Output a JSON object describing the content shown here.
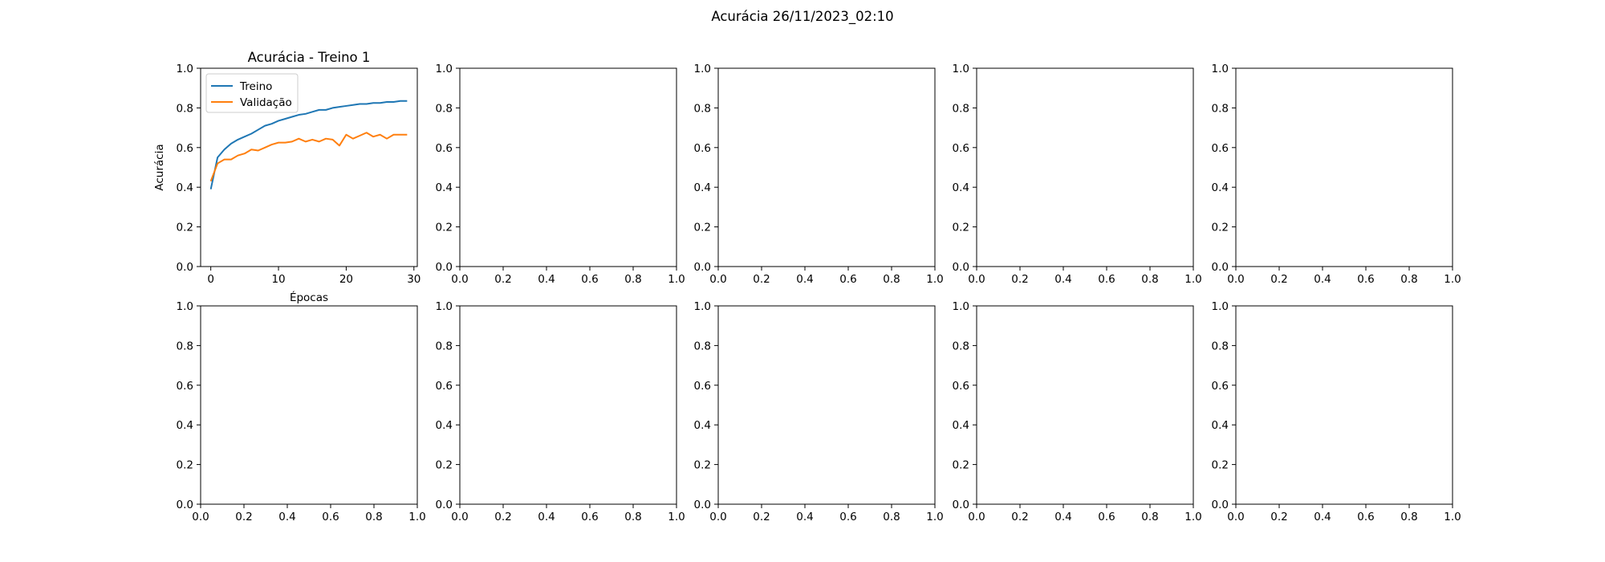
{
  "figure": {
    "suptitle": "Acurácia 26/11/2023_02:10"
  },
  "chart_data": [
    {
      "type": "line",
      "title": "Acurácia - Treino 1",
      "xlabel": "Épocas",
      "ylabel": "Acurácia",
      "xlim": [
        -1.5,
        30.5
      ],
      "ylim": [
        0.0,
        1.0
      ],
      "xticks": [
        0,
        10,
        20,
        30
      ],
      "yticks": [
        0.0,
        0.2,
        0.4,
        0.6,
        0.8,
        1.0
      ],
      "legend_position": "upper-left",
      "x": [
        0,
        1,
        2,
        3,
        4,
        5,
        6,
        7,
        8,
        9,
        10,
        11,
        12,
        13,
        14,
        15,
        16,
        17,
        18,
        19,
        20,
        21,
        22,
        23,
        24,
        25,
        26,
        27,
        28,
        29
      ],
      "series": [
        {
          "name": "Treino",
          "color": "#1f77b4",
          "values": [
            0.39,
            0.55,
            0.59,
            0.62,
            0.64,
            0.655,
            0.67,
            0.69,
            0.71,
            0.72,
            0.735,
            0.745,
            0.755,
            0.765,
            0.77,
            0.78,
            0.79,
            0.79,
            0.8,
            0.805,
            0.81,
            0.815,
            0.82,
            0.82,
            0.825,
            0.825,
            0.83,
            0.83,
            0.835,
            0.835
          ]
        },
        {
          "name": "Validação",
          "color": "#ff7f0e",
          "values": [
            0.43,
            0.52,
            0.54,
            0.54,
            0.56,
            0.57,
            0.59,
            0.585,
            0.6,
            0.615,
            0.625,
            0.625,
            0.63,
            0.645,
            0.63,
            0.64,
            0.63,
            0.645,
            0.64,
            0.61,
            0.665,
            0.645,
            0.66,
            0.675,
            0.655,
            0.665,
            0.645,
            0.665,
            0.665,
            0.665
          ]
        }
      ]
    },
    {
      "type": "line",
      "xlim": [
        0,
        1
      ],
      "ylim": [
        0,
        1
      ],
      "xticks": [
        0.0,
        0.2,
        0.4,
        0.6,
        0.8,
        1.0
      ],
      "yticks": [
        0.0,
        0.2,
        0.4,
        0.6,
        0.8,
        1.0
      ],
      "series": []
    },
    {
      "type": "line",
      "xlim": [
        0,
        1
      ],
      "ylim": [
        0,
        1
      ],
      "xticks": [
        0.0,
        0.2,
        0.4,
        0.6,
        0.8,
        1.0
      ],
      "yticks": [
        0.0,
        0.2,
        0.4,
        0.6,
        0.8,
        1.0
      ],
      "series": []
    },
    {
      "type": "line",
      "xlim": [
        0,
        1
      ],
      "ylim": [
        0,
        1
      ],
      "xticks": [
        0.0,
        0.2,
        0.4,
        0.6,
        0.8,
        1.0
      ],
      "yticks": [
        0.0,
        0.2,
        0.4,
        0.6,
        0.8,
        1.0
      ],
      "series": []
    },
    {
      "type": "line",
      "xlim": [
        0,
        1
      ],
      "ylim": [
        0,
        1
      ],
      "xticks": [
        0.0,
        0.2,
        0.4,
        0.6,
        0.8,
        1.0
      ],
      "yticks": [
        0.0,
        0.2,
        0.4,
        0.6,
        0.8,
        1.0
      ],
      "series": []
    },
    {
      "type": "line",
      "xlim": [
        0,
        1
      ],
      "ylim": [
        0,
        1
      ],
      "xticks": [
        0.0,
        0.2,
        0.4,
        0.6,
        0.8,
        1.0
      ],
      "yticks": [
        0.0,
        0.2,
        0.4,
        0.6,
        0.8,
        1.0
      ],
      "series": []
    },
    {
      "type": "line",
      "xlim": [
        0,
        1
      ],
      "ylim": [
        0,
        1
      ],
      "xticks": [
        0.0,
        0.2,
        0.4,
        0.6,
        0.8,
        1.0
      ],
      "yticks": [
        0.0,
        0.2,
        0.4,
        0.6,
        0.8,
        1.0
      ],
      "series": []
    },
    {
      "type": "line",
      "xlim": [
        0,
        1
      ],
      "ylim": [
        0,
        1
      ],
      "xticks": [
        0.0,
        0.2,
        0.4,
        0.6,
        0.8,
        1.0
      ],
      "yticks": [
        0.0,
        0.2,
        0.4,
        0.6,
        0.8,
        1.0
      ],
      "series": []
    },
    {
      "type": "line",
      "xlim": [
        0,
        1
      ],
      "ylim": [
        0,
        1
      ],
      "xticks": [
        0.0,
        0.2,
        0.4,
        0.6,
        0.8,
        1.0
      ],
      "yticks": [
        0.0,
        0.2,
        0.4,
        0.6,
        0.8,
        1.0
      ],
      "series": []
    },
    {
      "type": "line",
      "xlim": [
        0,
        1
      ],
      "ylim": [
        0,
        1
      ],
      "xticks": [
        0.0,
        0.2,
        0.4,
        0.6,
        0.8,
        1.0
      ],
      "yticks": [
        0.0,
        0.2,
        0.4,
        0.6,
        0.8,
        1.0
      ],
      "series": []
    }
  ]
}
